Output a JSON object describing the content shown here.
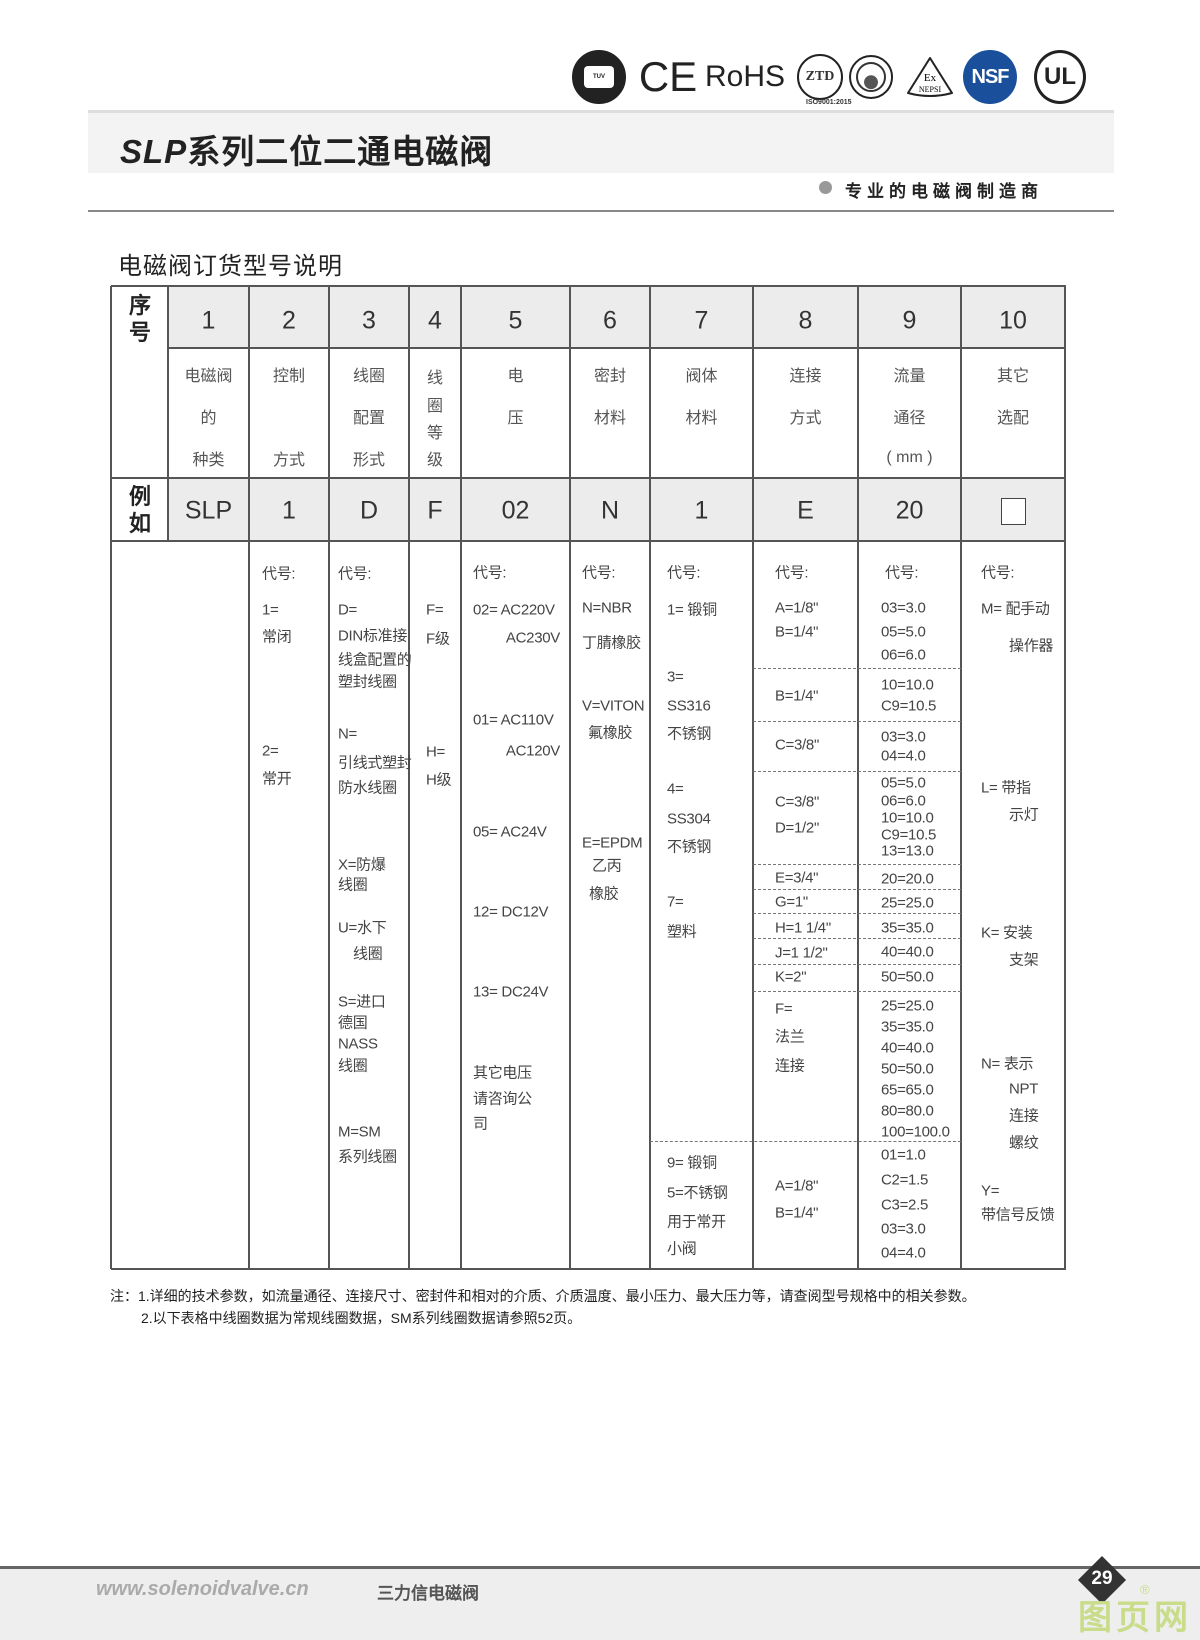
{
  "header": {
    "logos": [
      "TUV NORD",
      "CE",
      "RoHS",
      "ZTD",
      "seal",
      "Ex NEPSI",
      "NSF",
      "UL"
    ],
    "iso_label": "ISO9001:2015",
    "title_prefix": "SLP",
    "title": "系列二位二通电磁阀",
    "slogan": "专业的电磁阀制造商"
  },
  "subtitle": "电磁阀订货型号说明",
  "table": {
    "seq_label": [
      "序",
      "号"
    ],
    "example_label": [
      "例",
      "如"
    ],
    "columns": [
      {
        "num": "1",
        "desc": [
          "电磁阀",
          "的",
          "种类"
        ],
        "example": "SLP"
      },
      {
        "num": "2",
        "desc": [
          "控制",
          "",
          "方式"
        ],
        "example": "1"
      },
      {
        "num": "3",
        "desc": [
          "线圈",
          "配置",
          "形式"
        ],
        "example": "D"
      },
      {
        "num": "4",
        "desc": [
          "线",
          "圈",
          "等",
          "级"
        ],
        "example": "F"
      },
      {
        "num": "5",
        "desc": [
          "电",
          "压"
        ],
        "example": "02"
      },
      {
        "num": "6",
        "desc": [
          "密封",
          "材料"
        ],
        "example": "N"
      },
      {
        "num": "7",
        "desc": [
          "阀体",
          "材料"
        ],
        "example": "1"
      },
      {
        "num": "8",
        "desc": [
          "连接",
          "方式"
        ],
        "example": "E"
      },
      {
        "num": "9",
        "desc": [
          "流量",
          "通径",
          "( mm )"
        ],
        "example": "20"
      },
      {
        "num": "10",
        "desc": [
          "其它",
          "选配"
        ],
        "example": ""
      }
    ],
    "body": {
      "c2": [
        "代号:",
        "1=",
        "常闭",
        "2=",
        "常开"
      ],
      "c3": [
        "代号:",
        "D=",
        "DIN标准接",
        "线盒配置的",
        "塑封线圈",
        "N=",
        "引线式塑封",
        "防水线圈",
        "X=防爆",
        "线圈",
        "U=水下",
        "线圈",
        "S=进口",
        "德国",
        "NASS",
        "线圈",
        "M=SM",
        "系列线圈"
      ],
      "c4": [
        "F=",
        "F级",
        "H=",
        "H级"
      ],
      "c5": [
        "代号:",
        "02= AC220V",
        "AC230V",
        "01= AC110V",
        "AC120V",
        "05= AC24V",
        "12= DC12V",
        "13= DC24V",
        "其它电压",
        "请咨询公",
        "司"
      ],
      "c6": [
        "代号:",
        "N=NBR",
        "丁腈橡胶",
        "V=VITON",
        "氟橡胶",
        "E=EPDM",
        "乙丙",
        "橡胶"
      ],
      "c7": [
        "代号:",
        "1= 锻铜",
        "3=",
        "SS316",
        "不锈钢",
        "4=",
        "SS304",
        "不锈钢",
        "7=",
        "塑料",
        "9= 锻铜",
        "5=不锈钢",
        "用于常开",
        "小阀"
      ],
      "c8": [
        "代号:",
        "A=1/8\"",
        "B=1/4\"",
        "B=1/4\"",
        "C=3/8\"",
        "C=3/8\"",
        "D=1/2\"",
        "E=3/4\"",
        "G=1\"",
        "H=1 1/4\"",
        "J=1 1/2\"",
        "K=2\"",
        "F=",
        "法兰",
        "连接",
        "A=1/8\"",
        "B=1/4\""
      ],
      "c9": [
        "代号:",
        "03=3.0",
        "05=5.0",
        "06=6.0",
        "10=10.0",
        "C9=10.5",
        "03=3.0",
        "04=4.0",
        "05=5.0",
        "06=6.0",
        "10=10.0",
        "C9=10.5",
        "13=13.0",
        "20=20.0",
        "25=25.0",
        "35=35.0",
        "40=40.0",
        "50=50.0",
        "25=25.0",
        "35=35.0",
        "40=40.0",
        "50=50.0",
        "65=65.0",
        "80=80.0",
        "100=100.0",
        "01=1.0",
        "C2=1.5",
        "C3=2.5",
        "03=3.0",
        "04=4.0"
      ],
      "c10": [
        "代号:",
        "M= 配手动",
        "操作器",
        "L= 带指",
        "示灯",
        "K= 安装",
        "支架",
        "N= 表示",
        "NPT",
        "连接",
        "螺纹",
        "Y=",
        "带信号反馈"
      ]
    }
  },
  "notes": [
    "注：1.详细的技术参数，如流量通径、连接尺寸、密封件和相对的介质、介质温度、最小压力、最大压力等，请查阅型号规格中的相关参数。",
    "2.以下表格中线圈数据为常规线圈数据，SM系列线圈数据请参照52页。"
  ],
  "footer": {
    "url": "www.solenoidvalve.cn",
    "brand": "三力信电磁阀",
    "page": "29",
    "watermark": "图页网"
  },
  "colors": {
    "nsf": "#1a4f9c",
    "header_band": "#f3f3f3",
    "table_fill": "#ececec",
    "watermark": "#c9dc8a"
  }
}
